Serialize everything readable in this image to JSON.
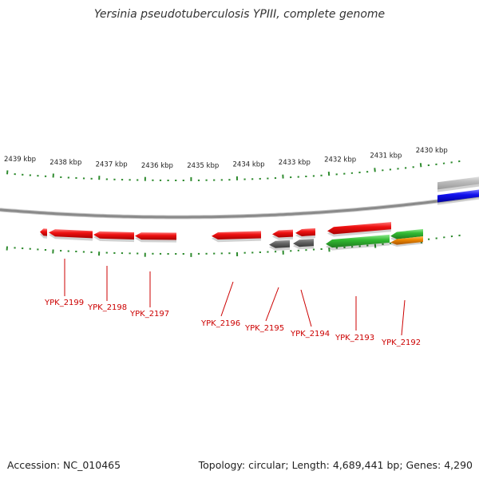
{
  "title": "Yersinia pseudotuberculosis YPIII, complete genome",
  "footer": {
    "accession": "Accession: NC_010465",
    "topology": "Topology: circular; Length: 4,689,441 bp; Genes: 4,290"
  },
  "colors": {
    "backbone": "#8a8a8a",
    "tick": "#2e8b2e",
    "gene_red": "#ee1111",
    "gene_gray": "#666666",
    "gene_green": "#33bb33",
    "gene_orange": "#ee8800",
    "gene_blue": "#1111ee",
    "gene_lightgray": "#bbbbbb",
    "label": "#cc0000"
  },
  "ruler": {
    "unit": "kbp",
    "labels": [
      "2439 kbp",
      "2438 kbp",
      "2437 kbp",
      "2436 kbp",
      "2435 kbp",
      "2434 kbp",
      "2433 kbp",
      "2432 kbp",
      "2431 kbp",
      "2430 kbp"
    ]
  },
  "genes": [
    {
      "color": "red",
      "strand": "-"
    },
    {
      "color": "red",
      "strand": "-"
    },
    {
      "color": "red",
      "strand": "-"
    },
    {
      "color": "red",
      "strand": "-"
    },
    {
      "color": "red",
      "strand": "-"
    },
    {
      "color": "gray",
      "strand": "-"
    },
    {
      "color": "red",
      "strand": "-"
    },
    {
      "color": "gray",
      "strand": "-"
    },
    {
      "color": "red",
      "strand": "-"
    },
    {
      "color": "green",
      "strand": "-"
    },
    {
      "color": "red",
      "strand": "-"
    },
    {
      "color": "green",
      "strand": "-"
    },
    {
      "color": "orange",
      "strand": "-"
    },
    {
      "color": "lightgray",
      "strand": "+"
    },
    {
      "color": "blue",
      "strand": "+"
    }
  ],
  "gene_labels": [
    "YPK_2199",
    "YPK_2198",
    "YPK_2197",
    "YPK_2196",
    "YPK_2195",
    "YPK_2194",
    "YPK_2193",
    "YPK_2192"
  ]
}
